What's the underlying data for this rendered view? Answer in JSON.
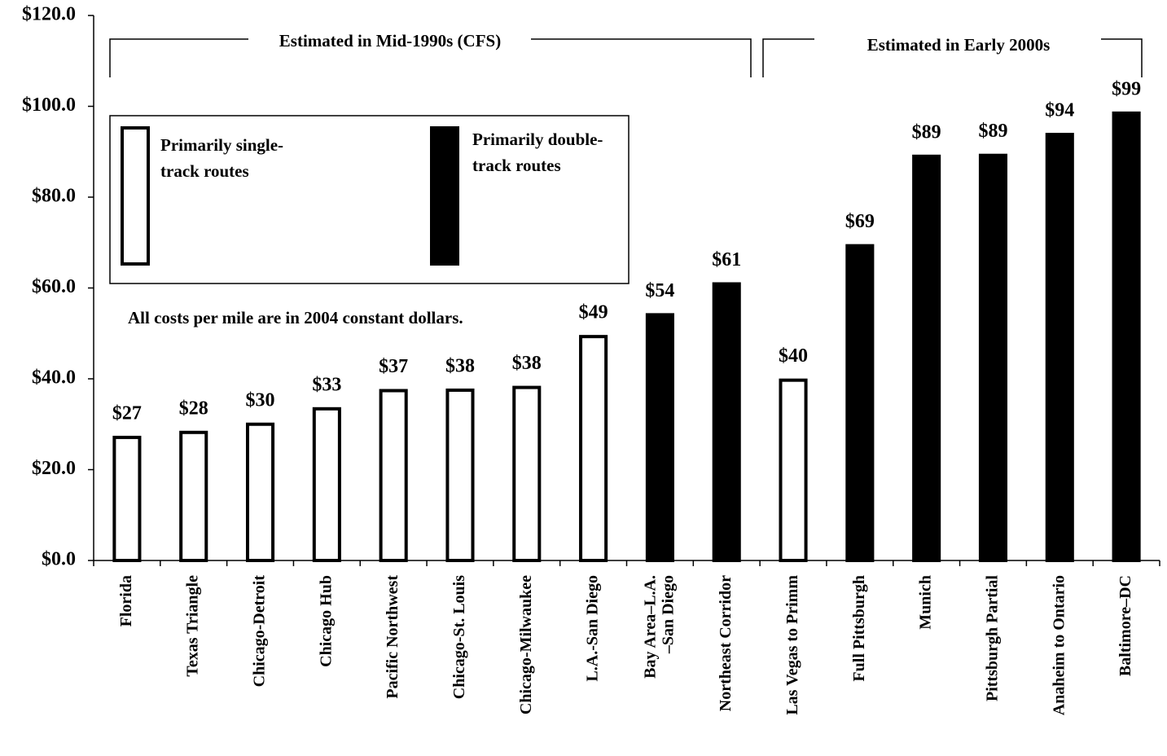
{
  "chart_data": {
    "type": "bar",
    "categories": [
      "Florida",
      "Texas Triangle",
      "Chicago-Detroit",
      "Chicago Hub",
      "Pacific Northwest",
      "Chicago-St. Louis",
      "Chicago-Milwaukee",
      "L.A.-San Diego",
      "Bay Area–L.A.\n–San Diego",
      "Northeast Corridor",
      "Las Vegas to Primm",
      "Full Pittsburgh",
      "Munich",
      "Pittsburgh  Partial",
      "Anaheim to Ontario",
      "Baltimore–DC"
    ],
    "values": [
      27.1,
      28.2,
      30.0,
      33.4,
      37.4,
      37.5,
      38.1,
      49.3,
      54.1,
      60.9,
      39.7,
      69.3,
      89.0,
      89.2,
      93.8,
      98.5
    ],
    "value_labels": [
      "$27",
      "$28",
      "$30",
      "$33",
      "$37",
      "$38",
      "$38",
      "$49",
      "$54",
      "$61",
      "$40",
      "$69",
      "$89",
      "$89",
      "$94",
      "$99"
    ],
    "colors": [
      "#ffffff",
      "#ffffff",
      "#ffffff",
      "#ffffff",
      "#ffffff",
      "#ffffff",
      "#ffffff",
      "#ffffff",
      "#000000",
      "#000000",
      "#ffffff",
      "#000000",
      "#000000",
      "#000000",
      "#000000",
      "#000000"
    ],
    "legend": [
      {
        "label_lines": [
          "Primarily single-",
          "track routes"
        ],
        "color": "#ffffff"
      },
      {
        "label_lines": [
          "Primarily double-",
          "track routes"
        ],
        "color": "#000000"
      }
    ],
    "annotations": [
      "Estimated in Mid-1990s (CFS)",
      "Estimated in Early 2000s",
      "All costs per mile are in 2004 constant dollars."
    ],
    "ylim": [
      0,
      120
    ],
    "yticks": [
      {
        "value": 0,
        "label": "$0.0"
      },
      {
        "value": 20,
        "label": "$20.0"
      },
      {
        "value": 40,
        "label": "$40.0"
      },
      {
        "value": 60,
        "label": "$60.0"
      },
      {
        "value": 80,
        "label": "$80.0"
      },
      {
        "value": 100,
        "label": "$100.0"
      },
      {
        "value": 120,
        "label": "$120.0"
      }
    ],
    "grid": false
  }
}
